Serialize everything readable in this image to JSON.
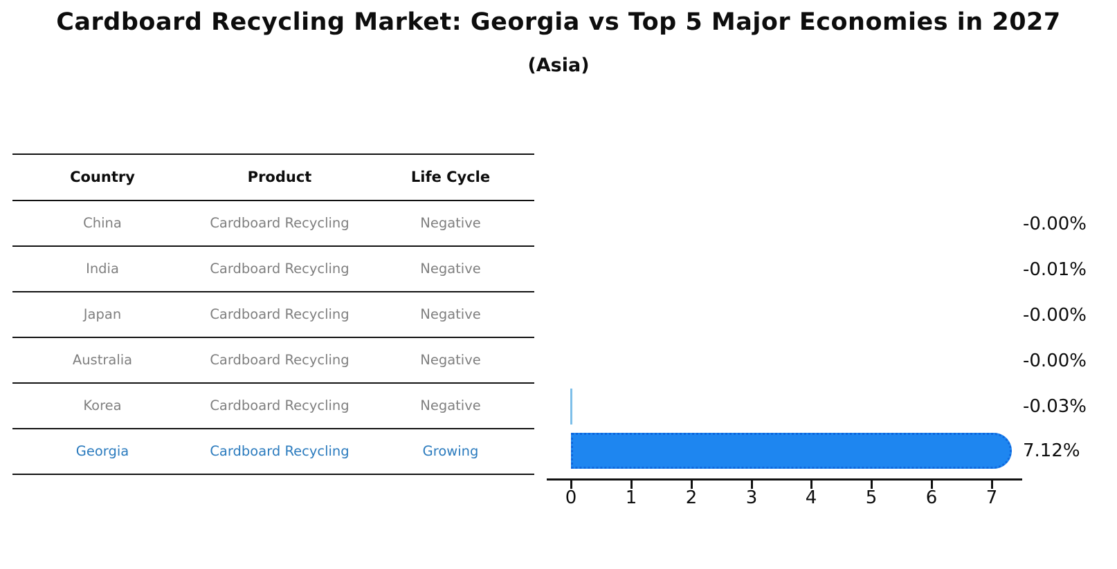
{
  "figure": {
    "title": "Cardboard Recycling Market: Georgia vs Top 5 Major Economies in 2027",
    "subtitle": "(Asia)"
  },
  "table": {
    "headers": {
      "country": "Country",
      "product": "Product",
      "life_cycle": "Life Cycle"
    },
    "rows": [
      {
        "country": "China",
        "product": "Cardboard Recycling",
        "life_cycle": "Negative"
      },
      {
        "country": "India",
        "product": "Cardboard Recycling",
        "life_cycle": "Negative"
      },
      {
        "country": "Japan",
        "product": "Cardboard Recycling",
        "life_cycle": "Negative"
      },
      {
        "country": "Australia",
        "product": "Cardboard Recycling",
        "life_cycle": "Negative"
      },
      {
        "country": "Korea",
        "product": "Cardboard Recycling",
        "life_cycle": "Negative"
      },
      {
        "country": "Georgia",
        "product": "Cardboard Recycling",
        "life_cycle": "Growing"
      }
    ],
    "highlighted_row": "Georgia"
  },
  "chart_data": {
    "type": "bar",
    "orientation": "horizontal",
    "categories": [
      "China",
      "India",
      "Japan",
      "Australia",
      "Korea",
      "Georgia"
    ],
    "values": [
      -0.0,
      -0.01,
      -0.0,
      -0.0,
      -0.03,
      7.12
    ],
    "value_labels": [
      "-0.00%",
      "-0.01%",
      "-0.00%",
      "-0.00%",
      "-0.03%",
      "7.12%"
    ],
    "unit": "percent",
    "highlight_category": "Georgia",
    "x_ticks": [
      "0",
      "1",
      "2",
      "3",
      "4",
      "5",
      "6",
      "7"
    ],
    "xlim": [
      -0.4,
      7.5
    ],
    "grid": false,
    "legend": "none",
    "colors": {
      "highlight_bar_fill": "#1e86f0",
      "highlight_bar_border": "#0e67dd",
      "small_bar": "#7ebfe9",
      "axis": "#111111",
      "value_text": "#0d0d0d",
      "table_muted_text": "#7f7f7f",
      "table_highlight_text": "#2b7bbe"
    }
  }
}
